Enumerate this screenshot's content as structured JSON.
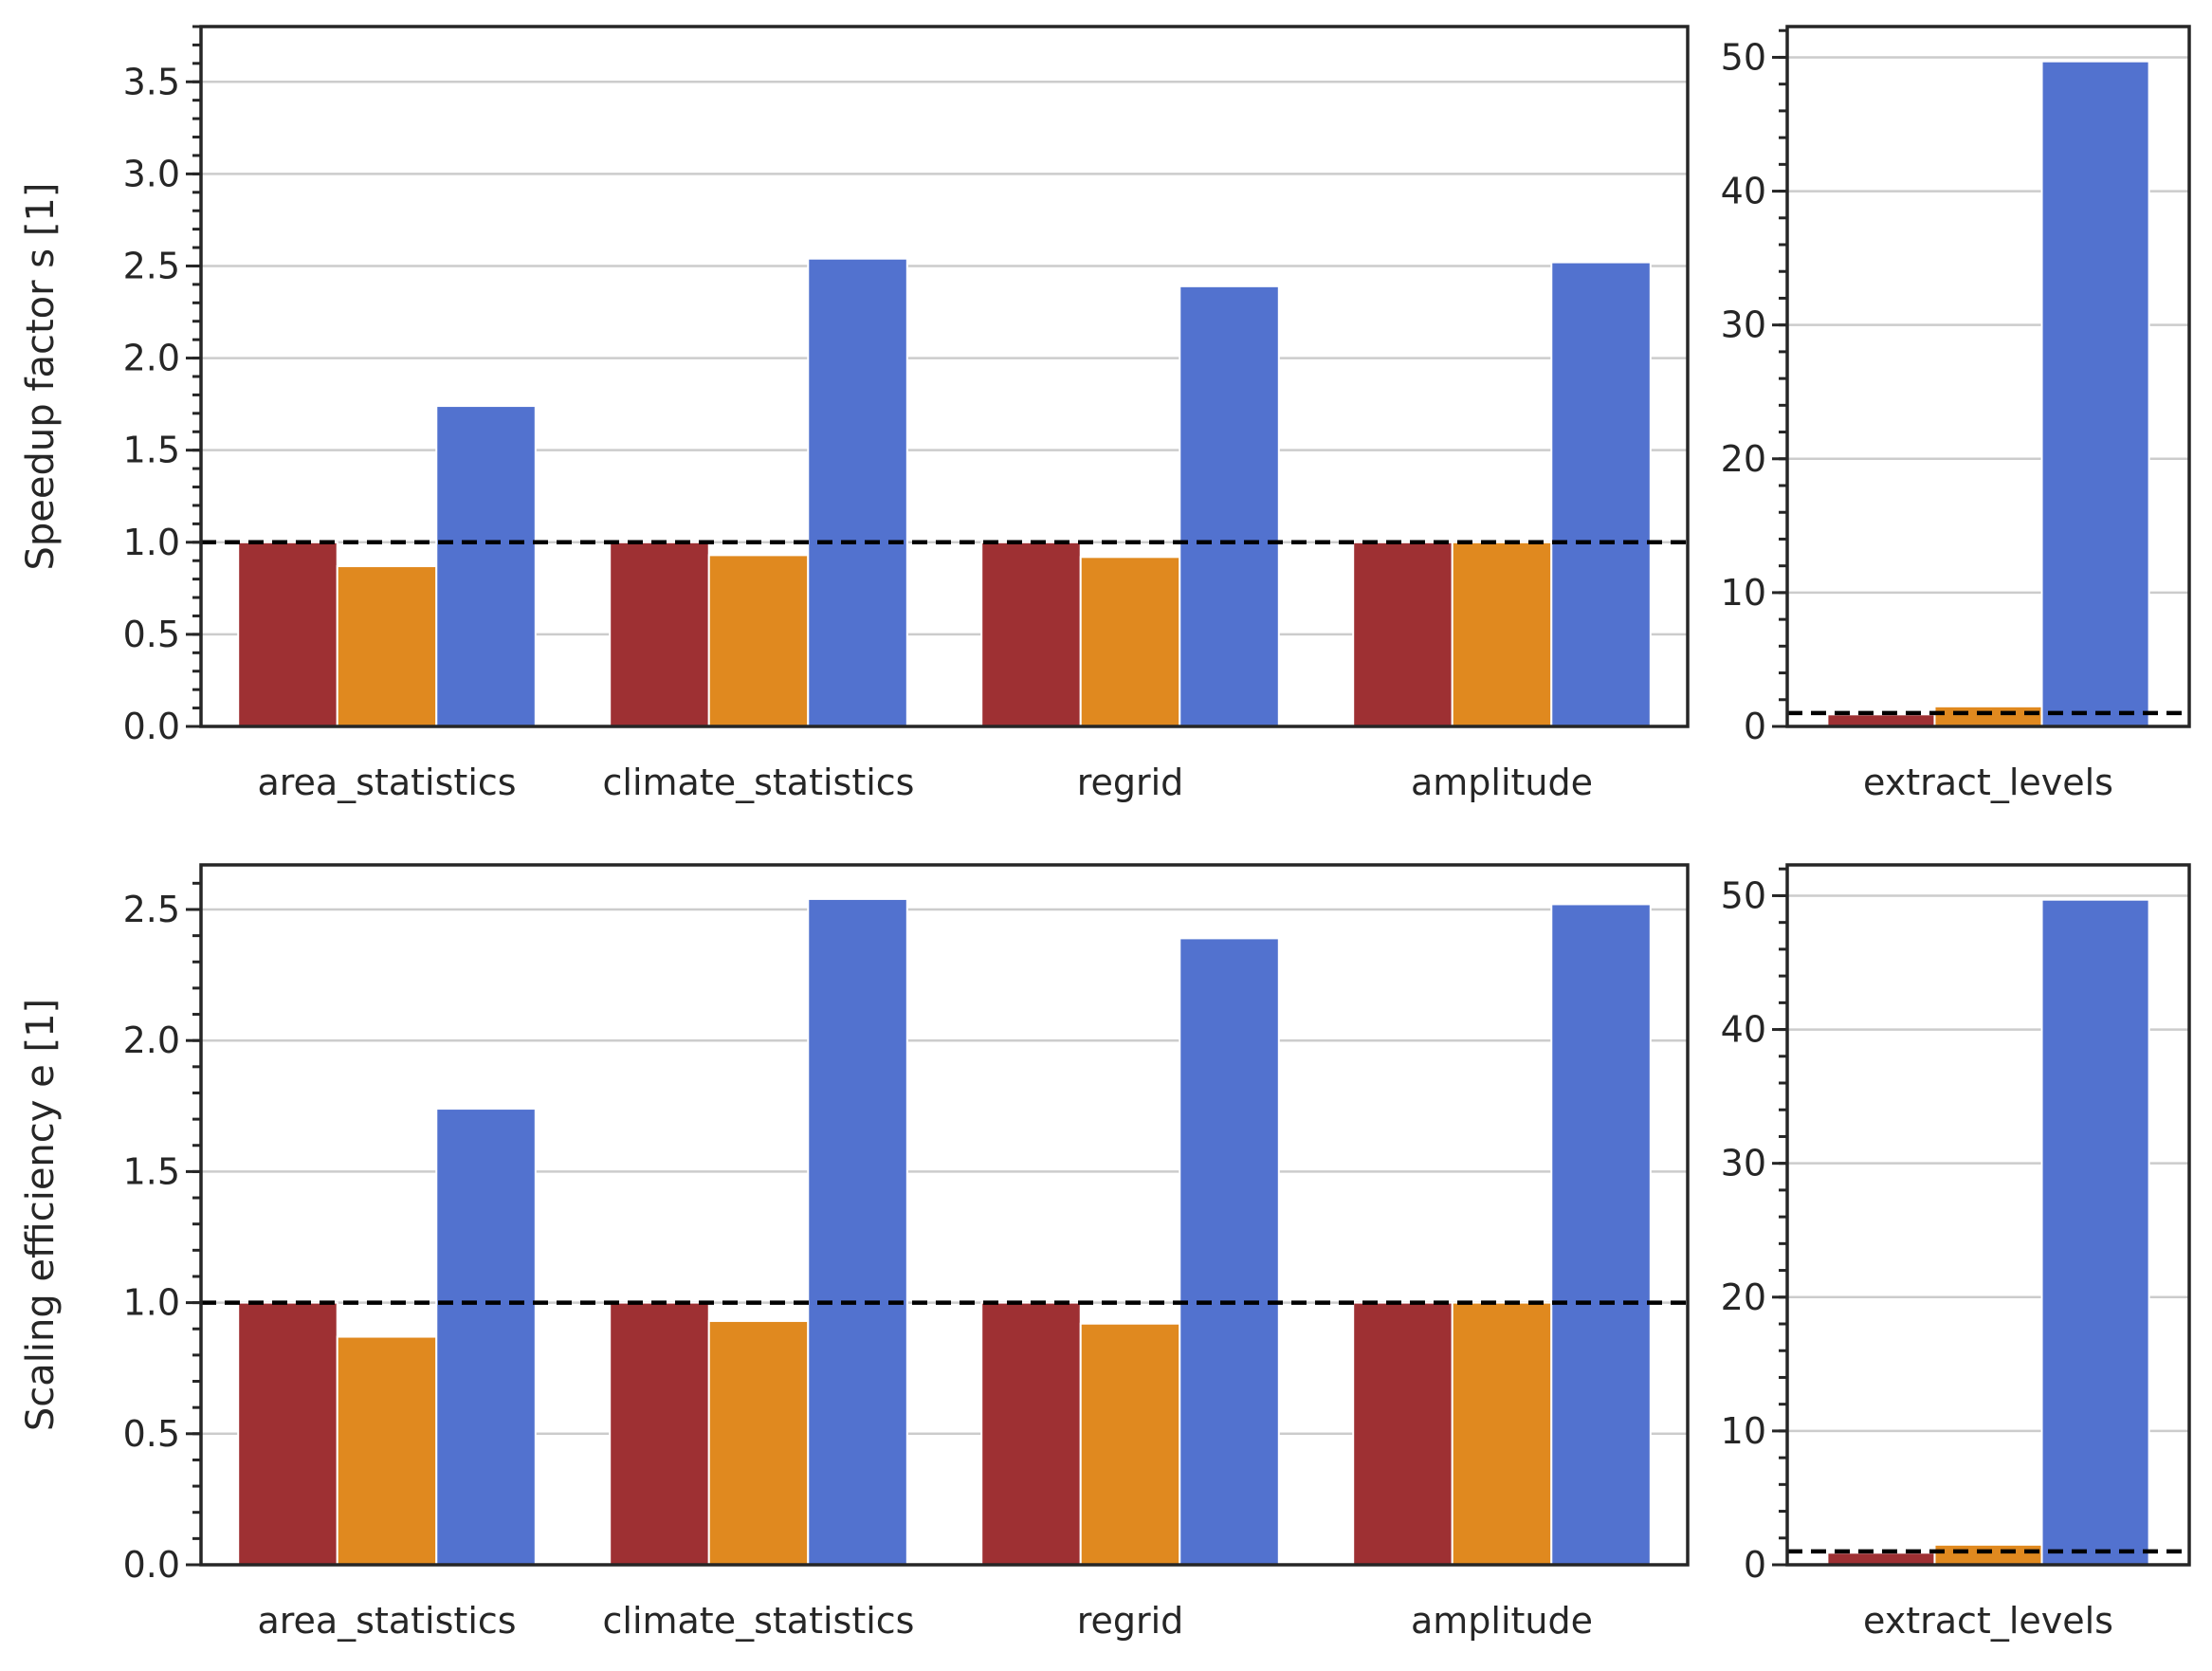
{
  "colors": {
    "series": [
      "#9e3033",
      "#e0891f",
      "#5272cf"
    ],
    "grid": "#cccccc",
    "spine": "#262626",
    "reference_line": "#000000"
  },
  "chart_data": [
    {
      "type": "bar",
      "categories": [
        "area_statistics",
        "climate_statistics",
        "regrid",
        "amplitude"
      ],
      "series": [
        {
          "values": [
            1.0,
            1.0,
            1.0,
            1.0
          ]
        },
        {
          "values": [
            0.87,
            0.93,
            0.92,
            1.0
          ]
        },
        {
          "values": [
            1.74,
            2.54,
            2.39,
            2.52
          ]
        }
      ],
      "ylabel": "Speedup factor s [1]",
      "ylim": [
        0,
        3.8
      ],
      "yticks": [
        0.0,
        0.5,
        1.0,
        1.5,
        2.0,
        2.5,
        3.0,
        3.5
      ],
      "yticklabels": [
        "0.0",
        "0.5",
        "1.0",
        "1.5",
        "2.0",
        "2.5",
        "3.0",
        "3.5"
      ],
      "minor_step": 0.1,
      "reference_line": 1.0,
      "grid": true
    },
    {
      "type": "bar",
      "categories": [
        "extract_levels"
      ],
      "series": [
        {
          "values": [
            0.9
          ]
        },
        {
          "values": [
            1.5
          ]
        },
        {
          "values": [
            49.7
          ]
        }
      ],
      "ylabel": "",
      "ylim": [
        0,
        52.3
      ],
      "yticks": [
        0,
        10,
        20,
        30,
        40,
        50
      ],
      "yticklabels": [
        "0",
        "10",
        "20",
        "30",
        "40",
        "50"
      ],
      "minor_step": 2,
      "reference_line": 1.0,
      "grid": true
    },
    {
      "type": "bar",
      "categories": [
        "area_statistics",
        "climate_statistics",
        "regrid",
        "amplitude"
      ],
      "series": [
        {
          "values": [
            1.0,
            1.0,
            1.0,
            1.0
          ]
        },
        {
          "values": [
            0.87,
            0.93,
            0.92,
            1.0
          ]
        },
        {
          "values": [
            1.74,
            2.54,
            2.39,
            2.52
          ]
        }
      ],
      "ylabel": "Scaling efficiency e [1]",
      "ylim": [
        0,
        2.67
      ],
      "yticks": [
        0.0,
        0.5,
        1.0,
        1.5,
        2.0,
        2.5
      ],
      "yticklabels": [
        "0.0",
        "0.5",
        "1.0",
        "1.5",
        "2.0",
        "2.5"
      ],
      "minor_step": 0.1,
      "reference_line": 1.0,
      "grid": true
    },
    {
      "type": "bar",
      "categories": [
        "extract_levels"
      ],
      "series": [
        {
          "values": [
            0.9
          ]
        },
        {
          "values": [
            1.5
          ]
        },
        {
          "values": [
            49.7
          ]
        }
      ],
      "ylabel": "",
      "ylim": [
        0,
        52.3
      ],
      "yticks": [
        0,
        10,
        20,
        30,
        40,
        50
      ],
      "yticklabels": [
        "0",
        "10",
        "20",
        "30",
        "40",
        "50"
      ],
      "minor_step": 2,
      "reference_line": 1.0,
      "grid": true
    }
  ]
}
